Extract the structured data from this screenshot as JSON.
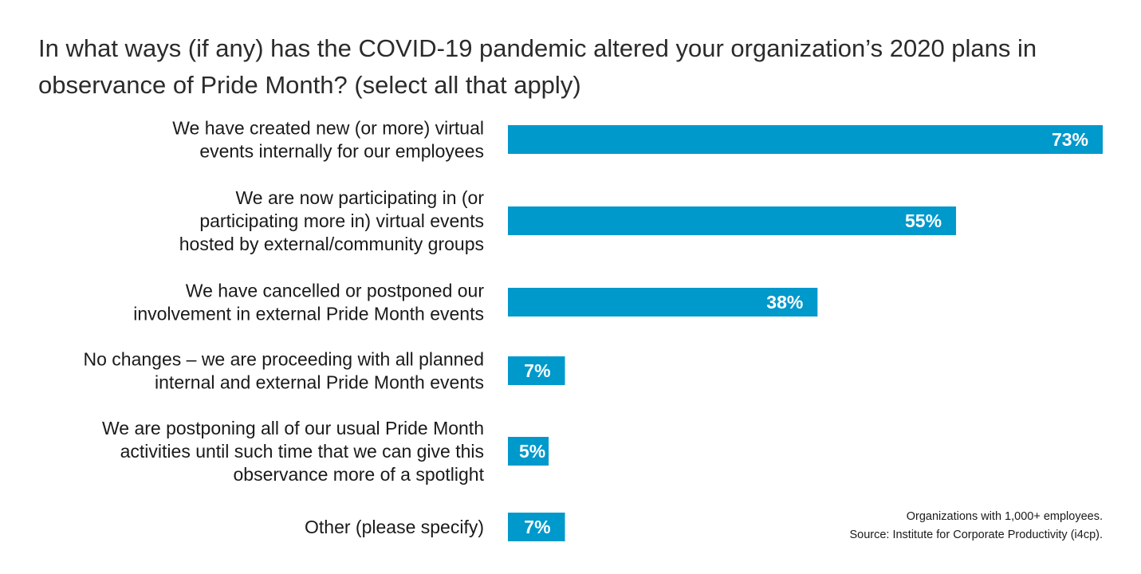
{
  "title": "In what ways (if any) has the COVID-19 pandemic altered your organization’s 2020 plans in observance of Pride Month? (select all that apply)",
  "notes": {
    "line1": "Organizations with 1,000+ employees.",
    "line2": "Source: Institute for Corporate Productivity (i4cp)."
  },
  "colors": {
    "bar": "#0099cc",
    "inside_label": "#ffffff",
    "outside_label": "#111111"
  },
  "chart_data": {
    "type": "bar",
    "orientation": "horizontal",
    "categories": [
      [
        "We have created new (or more) virtual",
        "events internally for our employees"
      ],
      [
        "We are now participating in (or",
        "participating more in) virtual events",
        "hosted by external/community groups"
      ],
      [
        "We have cancelled or postponed our",
        "involvement in external Pride Month events"
      ],
      [
        "No changes – we are proceeding with all planned",
        "internal and external Pride Month events"
      ],
      [
        "We are postponing all of our usual Pride Month",
        "activities until such time that we can give this",
        "observance more of a spotlight"
      ],
      [
        "Other (please specify)"
      ]
    ],
    "values": [
      73,
      55,
      38,
      7,
      5,
      7
    ],
    "value_labels": [
      "73%",
      "55%",
      "38%",
      "7%",
      "5%",
      "7%"
    ],
    "unit": "%",
    "xlim": [
      0,
      73
    ],
    "grid": false,
    "legend": "none"
  }
}
